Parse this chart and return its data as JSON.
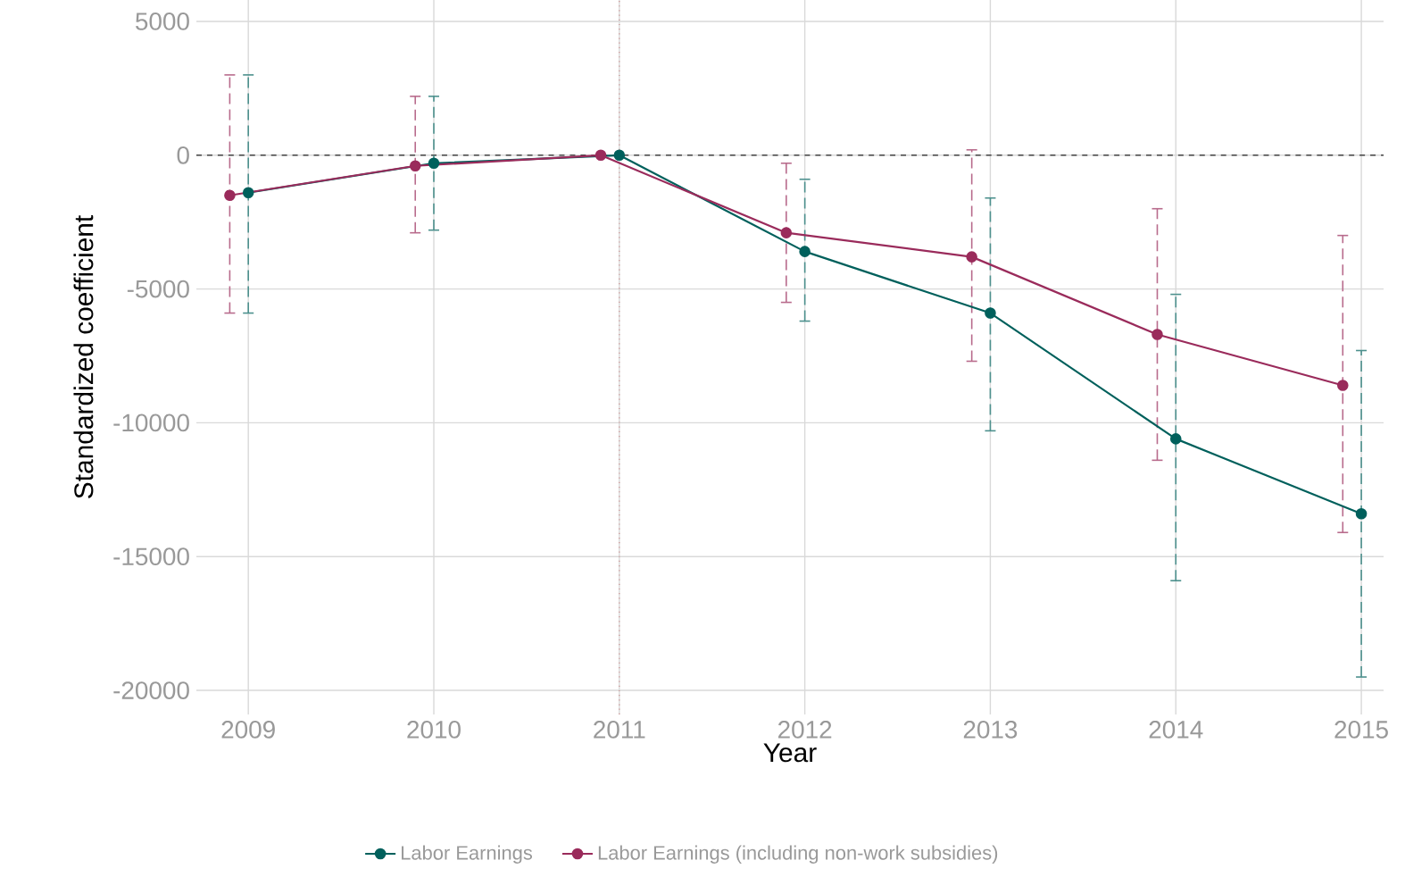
{
  "chart_data": {
    "type": "line",
    "xlabel": "Year",
    "ylabel": "Standardized coefficient",
    "xlim": [
      2008.72,
      2015.12
    ],
    "xticks": [
      2009,
      2010,
      2011,
      2012,
      2013,
      2014,
      2015
    ],
    "ylim": [
      -20900,
      5800
    ],
    "yticks": [
      5000,
      0,
      -5000,
      -10000,
      -15000,
      -20000
    ],
    "grid": true,
    "legend": "bottom",
    "marker": "circle",
    "line_style": "solid",
    "ref_lines": [
      {
        "axis": "y",
        "value": 0,
        "color": "#444444",
        "line_style": "dashed"
      },
      {
        "axis": "x",
        "value": 2011,
        "color": "#c99090",
        "line_style": "dotted"
      }
    ],
    "series": [
      {
        "name": "Labor Earnings",
        "color": "#00605c",
        "x": [
          2009,
          2010,
          2011,
          2012,
          2013,
          2014,
          2015
        ],
        "values": [
          -1400,
          -300,
          0,
          -3600,
          -5900,
          -10600,
          -13400
        ],
        "errors": [
          [
            -5900,
            3000
          ],
          [
            -2800,
            2200
          ],
          null,
          [
            -6200,
            -900
          ],
          [
            -10300,
            -1600
          ],
          [
            -15900,
            -5200
          ],
          [
            -19500,
            -7300
          ]
        ]
      },
      {
        "name": "Labor Earnings (including non-work subsidies)",
        "color": "#9a2b5b",
        "x": [
          2008.9,
          2009.9,
          2010.9,
          2011.9,
          2012.9,
          2013.9,
          2014.9
        ],
        "values": [
          -1500,
          -400,
          0,
          -2900,
          -3800,
          -6700,
          -8600
        ],
        "errors": [
          [
            -5900,
            3000
          ],
          [
            -2900,
            2200
          ],
          null,
          [
            -5500,
            -300
          ],
          [
            -7700,
            200
          ],
          [
            -11400,
            -2000
          ],
          [
            -14100,
            -3000
          ]
        ]
      }
    ]
  }
}
